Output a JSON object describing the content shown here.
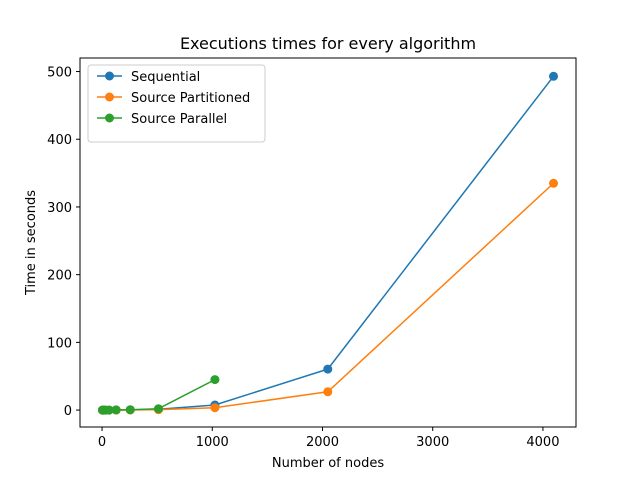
{
  "chart_data": {
    "type": "line",
    "title": "Executions times for every algorithm",
    "xlabel": "Number of nodes",
    "ylabel": "Time in seconds",
    "xlim": [
      -200,
      4300
    ],
    "ylim": [
      -25,
      520
    ],
    "xticks": [
      0,
      1000,
      2000,
      3000,
      4000
    ],
    "yticks": [
      0,
      100,
      200,
      300,
      400,
      500
    ],
    "grid": false,
    "legend_position": "top-left",
    "series": [
      {
        "name": "Sequential",
        "color": "#1f77b4",
        "x": [
          4,
          8,
          16,
          32,
          64,
          128,
          256,
          512,
          1024,
          2048,
          4096
        ],
        "y": [
          0,
          0,
          0,
          0,
          0,
          0.1,
          0.3,
          1.2,
          7.5,
          60.5,
          493
        ]
      },
      {
        "name": "Source Partitioned",
        "color": "#ff7f0e",
        "x": [
          4,
          8,
          16,
          32,
          64,
          128,
          256,
          512,
          1024,
          2048,
          4096
        ],
        "y": [
          0,
          0,
          0,
          0,
          0,
          0.05,
          0.2,
          0.6,
          3.5,
          27,
          335
        ]
      },
      {
        "name": "Source Parallel",
        "color": "#2ca02c",
        "x": [
          4,
          8,
          16,
          32,
          64,
          128,
          256,
          512,
          1024
        ],
        "y": [
          0,
          0,
          0,
          0,
          0,
          0.3,
          0.5,
          2.0,
          45
        ]
      }
    ]
  }
}
